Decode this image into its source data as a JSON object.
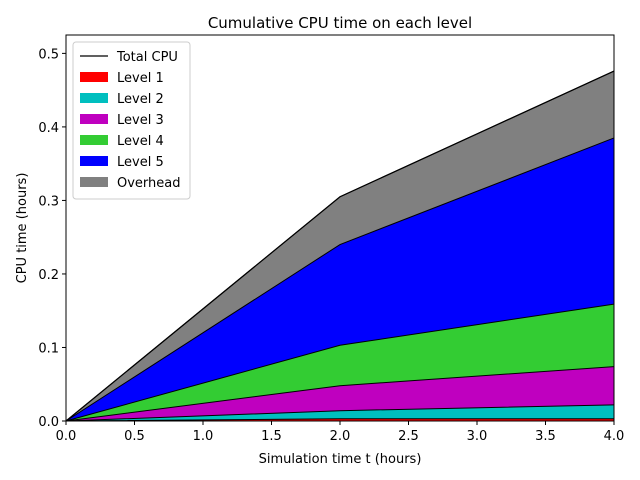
{
  "chart_data": {
    "type": "area",
    "title": "Cumulative CPU time on each level",
    "xlabel": "Simulation time t (hours)",
    "ylabel": "CPU time (hours)",
    "xlim": [
      0.0,
      4.0
    ],
    "ylim": [
      0.0,
      0.525
    ],
    "xticks": [
      "0.0",
      "0.5",
      "1.0",
      "1.5",
      "2.0",
      "2.5",
      "3.0",
      "3.5",
      "4.0"
    ],
    "yticks": [
      "0.0",
      "0.1",
      "0.2",
      "0.3",
      "0.4",
      "0.5"
    ],
    "grid": false,
    "legend_position": "top-left",
    "stacked": true,
    "x": [
      0.0,
      2.0,
      4.0
    ],
    "total_line": {
      "name": "Total CPU",
      "color": "#000000",
      "values": [
        0.0,
        0.305,
        0.476
      ]
    },
    "series": [
      {
        "name": "Level 1",
        "color": "#ff0000",
        "values": [
          0.0,
          0.003,
          0.003
        ]
      },
      {
        "name": "Level 2",
        "color": "#00bfbf",
        "values": [
          0.0,
          0.011,
          0.019
        ]
      },
      {
        "name": "Level 3",
        "color": "#bf00bf",
        "values": [
          0.0,
          0.034,
          0.052
        ]
      },
      {
        "name": "Level 4",
        "color": "#33cc33",
        "values": [
          0.0,
          0.055,
          0.085
        ]
      },
      {
        "name": "Level 5",
        "color": "#0000ff",
        "values": [
          0.0,
          0.137,
          0.226
        ]
      },
      {
        "name": "Overhead",
        "color": "#808080",
        "values": [
          0.0,
          0.065,
          0.091
        ]
      }
    ]
  }
}
